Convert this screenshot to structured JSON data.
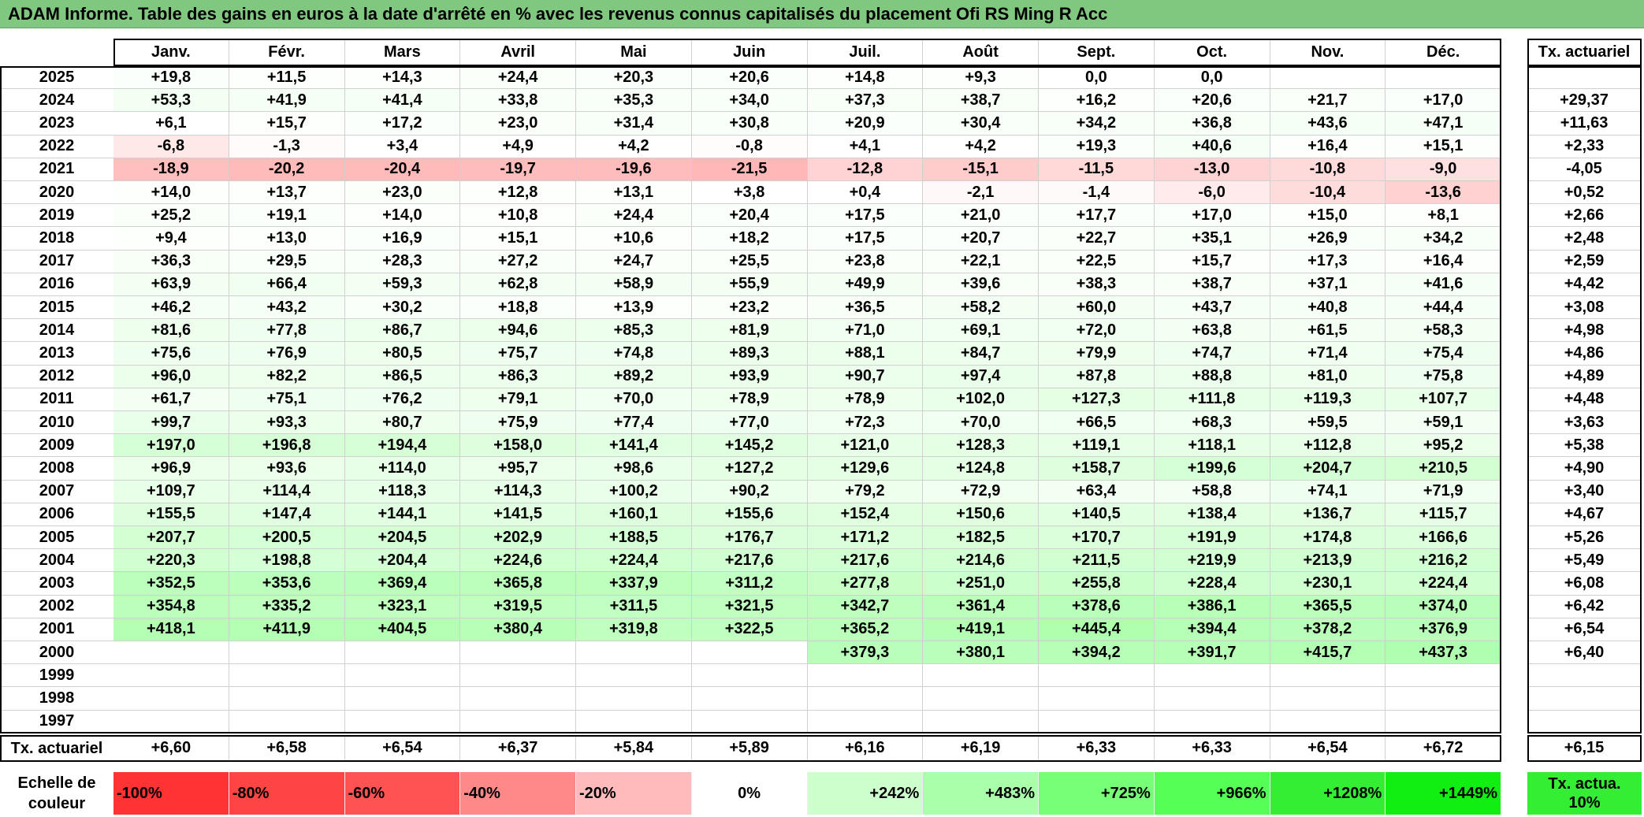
{
  "header": {
    "title": "ADAM Informe. Table des gains en euros à la date d'arrêté en % avec les revenus connus capitalisés du placement Ofi RS Ming R Acc"
  },
  "table": {
    "columns": [
      "Janv.",
      "Févr.",
      "Mars",
      "Avril",
      "Mai",
      "Juin",
      "Juil.",
      "Août",
      "Sept.",
      "Oct.",
      "Nov.",
      "Déc."
    ],
    "tx_header": "Tx. actuariel",
    "rows": [
      {
        "year": "2025",
        "cells": [
          "+19,8",
          "+11,5",
          "+14,3",
          "+24,4",
          "+20,3",
          "+20,6",
          "+14,8",
          "+9,3",
          "0,0",
          "0,0",
          null,
          null
        ],
        "tx": null
      },
      {
        "year": "2024",
        "cells": [
          "+53,3",
          "+41,9",
          "+41,4",
          "+33,8",
          "+35,3",
          "+34,0",
          "+37,3",
          "+38,7",
          "+16,2",
          "+20,6",
          "+21,7",
          "+17,0"
        ],
        "tx": "+29,37"
      },
      {
        "year": "2023",
        "cells": [
          "+6,1",
          "+15,7",
          "+17,2",
          "+23,0",
          "+31,4",
          "+30,8",
          "+20,9",
          "+30,4",
          "+34,2",
          "+36,8",
          "+43,6",
          "+47,1"
        ],
        "tx": "+11,63"
      },
      {
        "year": "2022",
        "cells": [
          "-6,8",
          "-1,3",
          "+3,4",
          "+4,9",
          "+4,2",
          "-0,8",
          "+4,1",
          "+4,2",
          "+19,3",
          "+40,6",
          "+16,4",
          "+15,1"
        ],
        "tx": "+2,33"
      },
      {
        "year": "2021",
        "cells": [
          "-18,9",
          "-20,2",
          "-20,4",
          "-19,7",
          "-19,6",
          "-21,5",
          "-12,8",
          "-15,1",
          "-11,5",
          "-13,0",
          "-10,8",
          "-9,0"
        ],
        "tx": "-4,05"
      },
      {
        "year": "2020",
        "cells": [
          "+14,0",
          "+13,7",
          "+23,0",
          "+12,8",
          "+13,1",
          "+3,8",
          "+0,4",
          "-2,1",
          "-1,4",
          "-6,0",
          "-10,4",
          "-13,6"
        ],
        "tx": "+0,52"
      },
      {
        "year": "2019",
        "cells": [
          "+25,2",
          "+19,1",
          "+14,0",
          "+10,8",
          "+24,4",
          "+20,4",
          "+17,5",
          "+21,0",
          "+17,7",
          "+17,0",
          "+15,0",
          "+8,1"
        ],
        "tx": "+2,66"
      },
      {
        "year": "2018",
        "cells": [
          "+9,4",
          "+13,0",
          "+16,9",
          "+15,1",
          "+10,6",
          "+18,2",
          "+17,5",
          "+20,7",
          "+22,7",
          "+35,1",
          "+26,9",
          "+34,2"
        ],
        "tx": "+2,48"
      },
      {
        "year": "2017",
        "cells": [
          "+36,3",
          "+29,5",
          "+28,3",
          "+27,2",
          "+24,7",
          "+25,5",
          "+23,8",
          "+22,1",
          "+22,5",
          "+15,7",
          "+17,3",
          "+16,4"
        ],
        "tx": "+2,59"
      },
      {
        "year": "2016",
        "cells": [
          "+63,9",
          "+66,4",
          "+59,3",
          "+62,8",
          "+58,9",
          "+55,9",
          "+49,9",
          "+39,6",
          "+38,3",
          "+38,7",
          "+37,1",
          "+41,6"
        ],
        "tx": "+4,42"
      },
      {
        "year": "2015",
        "cells": [
          "+46,2",
          "+43,2",
          "+30,2",
          "+18,8",
          "+13,9",
          "+23,2",
          "+36,5",
          "+58,2",
          "+60,0",
          "+43,7",
          "+40,8",
          "+44,4"
        ],
        "tx": "+3,08"
      },
      {
        "year": "2014",
        "cells": [
          "+81,6",
          "+77,8",
          "+86,7",
          "+94,6",
          "+85,3",
          "+81,9",
          "+71,0",
          "+69,1",
          "+72,0",
          "+63,8",
          "+61,5",
          "+58,3"
        ],
        "tx": "+4,98"
      },
      {
        "year": "2013",
        "cells": [
          "+75,6",
          "+76,9",
          "+80,5",
          "+75,7",
          "+74,8",
          "+89,3",
          "+88,1",
          "+84,7",
          "+79,9",
          "+74,7",
          "+71,4",
          "+75,4"
        ],
        "tx": "+4,86"
      },
      {
        "year": "2012",
        "cells": [
          "+96,0",
          "+82,2",
          "+86,5",
          "+86,3",
          "+89,2",
          "+93,9",
          "+90,7",
          "+97,4",
          "+87,8",
          "+88,8",
          "+81,0",
          "+75,8"
        ],
        "tx": "+4,89"
      },
      {
        "year": "2011",
        "cells": [
          "+61,7",
          "+75,1",
          "+76,2",
          "+79,1",
          "+70,0",
          "+78,9",
          "+78,9",
          "+102,0",
          "+127,3",
          "+111,8",
          "+119,3",
          "+107,7"
        ],
        "tx": "+4,48"
      },
      {
        "year": "2010",
        "cells": [
          "+99,7",
          "+93,3",
          "+80,7",
          "+75,9",
          "+77,4",
          "+77,0",
          "+72,3",
          "+70,0",
          "+66,5",
          "+68,3",
          "+59,5",
          "+59,1"
        ],
        "tx": "+3,63"
      },
      {
        "year": "2009",
        "cells": [
          "+197,0",
          "+196,8",
          "+194,4",
          "+158,0",
          "+141,4",
          "+145,2",
          "+121,0",
          "+128,3",
          "+119,1",
          "+118,1",
          "+112,8",
          "+95,2"
        ],
        "tx": "+5,38"
      },
      {
        "year": "2008",
        "cells": [
          "+96,9",
          "+93,6",
          "+114,0",
          "+95,7",
          "+98,6",
          "+127,2",
          "+129,6",
          "+124,8",
          "+158,7",
          "+199,6",
          "+204,7",
          "+210,5"
        ],
        "tx": "+4,90"
      },
      {
        "year": "2007",
        "cells": [
          "+109,7",
          "+114,4",
          "+118,3",
          "+114,3",
          "+100,2",
          "+90,2",
          "+79,2",
          "+72,9",
          "+63,4",
          "+58,8",
          "+74,1",
          "+71,9"
        ],
        "tx": "+3,40"
      },
      {
        "year": "2006",
        "cells": [
          "+155,5",
          "+147,4",
          "+144,1",
          "+141,5",
          "+160,1",
          "+155,6",
          "+152,4",
          "+150,6",
          "+140,5",
          "+138,4",
          "+136,7",
          "+115,7"
        ],
        "tx": "+4,67"
      },
      {
        "year": "2005",
        "cells": [
          "+207,7",
          "+200,5",
          "+204,5",
          "+202,9",
          "+188,5",
          "+176,7",
          "+171,2",
          "+182,5",
          "+170,7",
          "+191,9",
          "+174,8",
          "+166,6"
        ],
        "tx": "+5,26"
      },
      {
        "year": "2004",
        "cells": [
          "+220,3",
          "+198,8",
          "+204,4",
          "+224,6",
          "+224,4",
          "+217,6",
          "+217,6",
          "+214,6",
          "+211,5",
          "+219,9",
          "+213,9",
          "+216,2"
        ],
        "tx": "+5,49"
      },
      {
        "year": "2003",
        "cells": [
          "+352,5",
          "+353,6",
          "+369,4",
          "+365,8",
          "+337,9",
          "+311,2",
          "+277,8",
          "+251,0",
          "+255,8",
          "+228,4",
          "+230,1",
          "+224,4"
        ],
        "tx": "+6,08"
      },
      {
        "year": "2002",
        "cells": [
          "+354,8",
          "+335,2",
          "+323,1",
          "+319,5",
          "+311,5",
          "+321,5",
          "+342,7",
          "+361,4",
          "+378,6",
          "+386,1",
          "+365,5",
          "+374,0"
        ],
        "tx": "+6,42"
      },
      {
        "year": "2001",
        "cells": [
          "+418,1",
          "+411,9",
          "+404,5",
          "+380,4",
          "+319,8",
          "+322,5",
          "+365,2",
          "+419,1",
          "+445,4",
          "+394,4",
          "+378,2",
          "+376,9"
        ],
        "tx": "+6,54"
      },
      {
        "year": "2000",
        "cells": [
          null,
          null,
          null,
          null,
          null,
          null,
          "+379,3",
          "+380,1",
          "+394,2",
          "+391,7",
          "+415,7",
          "+437,3"
        ],
        "tx": "+6,40"
      },
      {
        "year": "1999",
        "cells": [
          null,
          null,
          null,
          null,
          null,
          null,
          null,
          null,
          null,
          null,
          null,
          null
        ],
        "tx": null
      },
      {
        "year": "1998",
        "cells": [
          null,
          null,
          null,
          null,
          null,
          null,
          null,
          null,
          null,
          null,
          null,
          null
        ],
        "tx": null
      },
      {
        "year": "1997",
        "cells": [
          null,
          null,
          null,
          null,
          null,
          null,
          null,
          null,
          null,
          null,
          null,
          null
        ],
        "tx": null
      }
    ],
    "footer": {
      "label": "Tx. actuariel",
      "cells": [
        "+6,60",
        "+6,58",
        "+6,54",
        "+6,37",
        "+5,84",
        "+5,89",
        "+6,16",
        "+6,19",
        "+6,33",
        "+6,33",
        "+6,54",
        "+6,72"
      ],
      "tx": "+6,15"
    }
  },
  "scale": {
    "label": "Echelle de couleur",
    "items": [
      {
        "label": "-100%",
        "color": "#ff3333"
      },
      {
        "label": "-80%",
        "color": "#ff4444"
      },
      {
        "label": "-60%",
        "color": "#ff5252"
      },
      {
        "label": "-40%",
        "color": "#ff8888"
      },
      {
        "label": "-20%",
        "color": "#ffbbbb"
      },
      {
        "label": "0%",
        "color": "#ffffff"
      },
      {
        "label": "+242%",
        "color": "#ccffcc"
      },
      {
        "label": "+483%",
        "color": "#aaffaa"
      },
      {
        "label": "+725%",
        "color": "#77ff77"
      },
      {
        "label": "+966%",
        "color": "#55ff55"
      },
      {
        "label": "+1208%",
        "color": "#33ee33"
      },
      {
        "label": "+1449%",
        "color": "#11ee11"
      }
    ],
    "tx": {
      "label": "Tx. actua. 10%",
      "color": "#33ee33"
    }
  }
}
